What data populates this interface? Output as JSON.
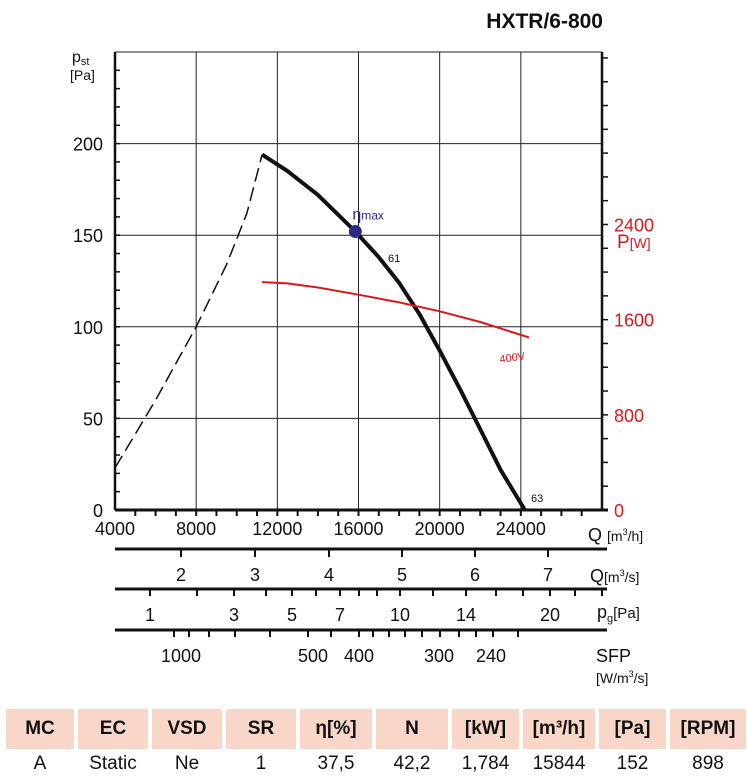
{
  "chart_data": {
    "type": "line",
    "title": "HXTR/6-800",
    "x_axis": {
      "label": "Q",
      "unit": "[m3/h]",
      "range": [
        4000,
        28000
      ],
      "ticks": [
        4000,
        8000,
        12000,
        16000,
        20000,
        24000
      ]
    },
    "y_axis_left": {
      "label": "pst",
      "unit": "[Pa]",
      "range": [
        0,
        250
      ],
      "ticks": [
        0,
        50,
        100,
        150,
        200
      ]
    },
    "y_axis_right": {
      "label": "P",
      "unit": "[W]",
      "color": "#d7191c",
      "range": [
        0,
        3850
      ],
      "ticks": [
        0,
        800,
        1600,
        2400
      ]
    },
    "grid": true,
    "series": [
      {
        "name": "61",
        "role": "pressure-stable",
        "color": "#111111",
        "style": "solid",
        "x": [
          11250,
          12500,
          14000,
          15844,
          17000,
          18000,
          19000,
          20000,
          21000,
          22000,
          23000,
          24200
        ],
        "y": [
          194,
          185,
          172,
          152,
          138,
          124,
          107,
          87,
          66,
          44,
          22,
          0
        ]
      },
      {
        "role": "pressure-unstable",
        "color": "#111111",
        "style": "dashed",
        "x": [
          4000,
          6000,
          8000,
          9500,
          10500,
          11250
        ],
        "y": [
          23,
          60,
          100,
          134,
          162,
          194
        ]
      },
      {
        "name": "400V",
        "role": "power",
        "axis": "right",
        "color": "#d7191c",
        "style": "solid",
        "x": [
          11250,
          12500,
          14000,
          16000,
          18000,
          20000,
          22000,
          24400
        ],
        "y": [
          1916,
          1905,
          1870,
          1810,
          1745,
          1670,
          1580,
          1450
        ]
      }
    ],
    "annotations": [
      {
        "text": "η",
        "sub": "max",
        "x": 15844,
        "y": 152,
        "marker_color": "#2b2a86"
      },
      {
        "text": "61"
      },
      {
        "text": "63"
      }
    ],
    "secondary_scales": [
      {
        "label": "Q",
        "unit": "[m3/s]",
        "ticks": [
          "2",
          "3",
          "4",
          "5",
          "6",
          "7"
        ]
      },
      {
        "label": "pg",
        "unit": "[Pa]",
        "ticks": [
          "1",
          "3",
          "5",
          "7",
          "10",
          "14",
          "20"
        ]
      },
      {
        "label": "SFP",
        "unit": "[W/m3/s]",
        "ticks": [
          "1000",
          "500",
          "400",
          "300",
          "240"
        ]
      }
    ]
  },
  "table": {
    "headers": [
      "MC",
      "EC",
      "VSD",
      "SR",
      "η[%]",
      "N",
      "[kW]",
      "[m³/h]",
      "[Pa]",
      "[RPM]"
    ],
    "values": [
      "A",
      "Static",
      "Ne",
      "1",
      "37,5",
      "42,2",
      "1,784",
      "15844",
      "152",
      "898"
    ]
  }
}
